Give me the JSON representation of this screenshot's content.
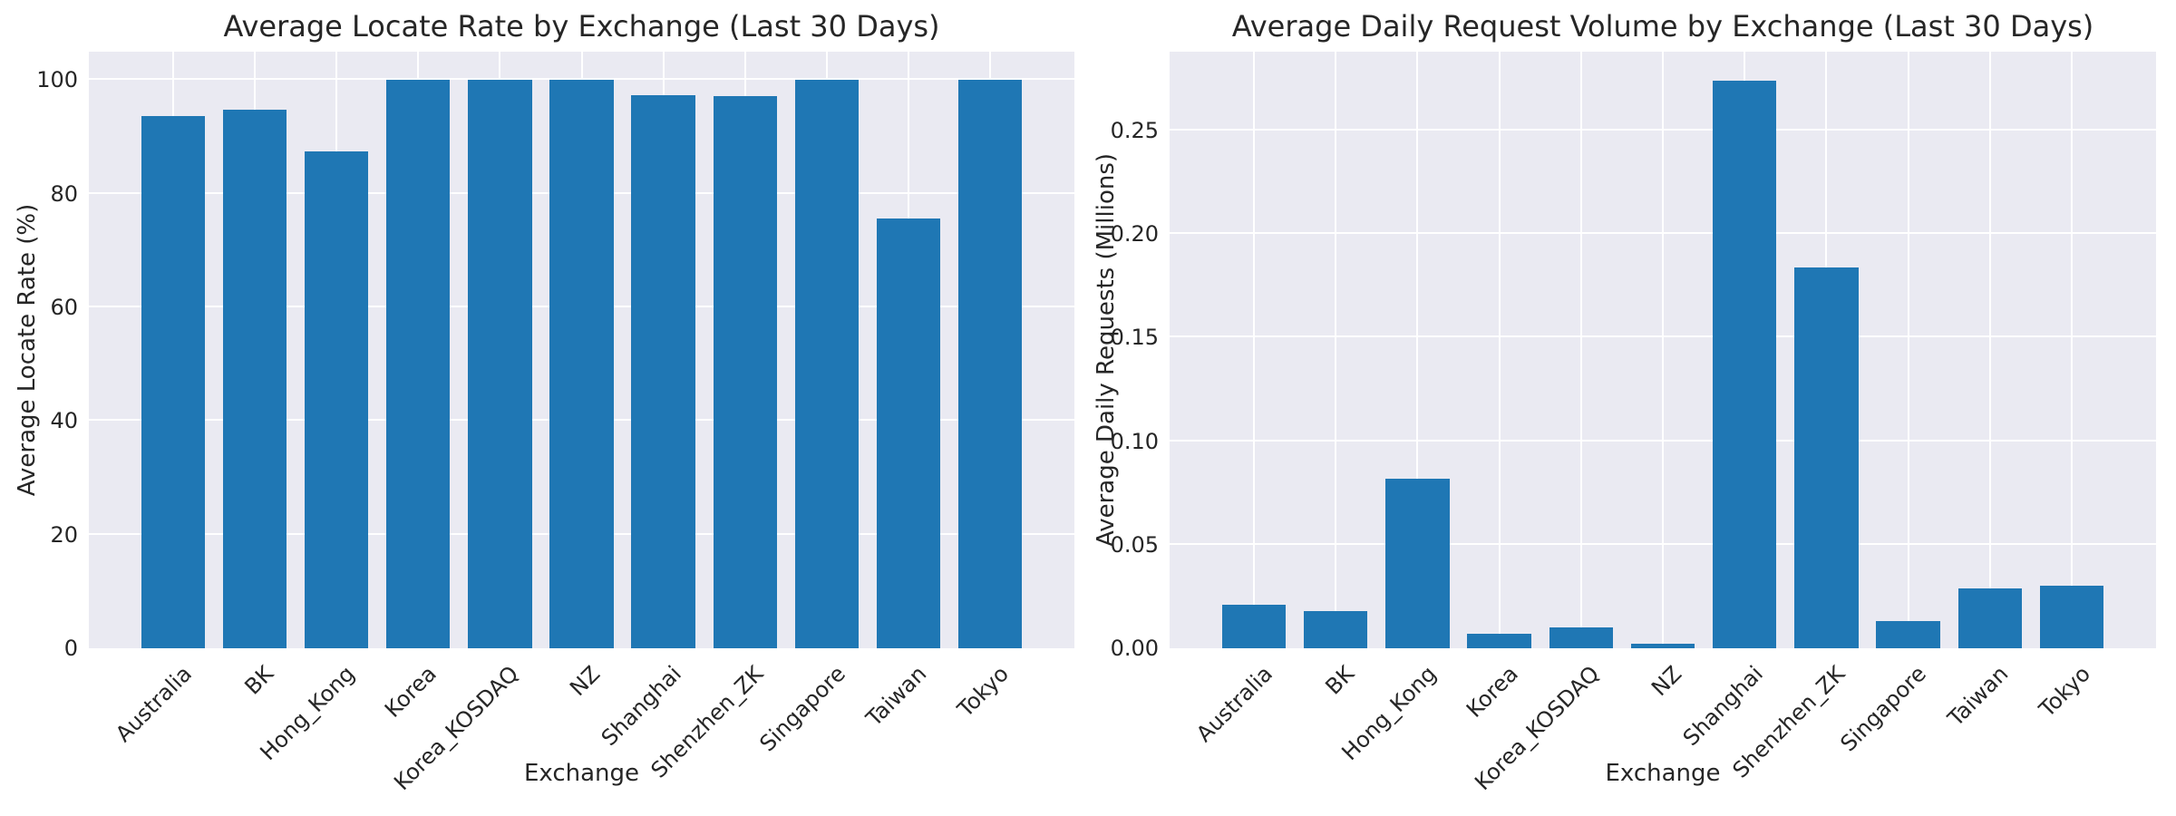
{
  "style": {
    "bar_color": "#1f77b4",
    "plot_background": "#eaeaf2",
    "grid_color": "#ffffff",
    "figure_background": "#ffffff",
    "text_color": "#262626"
  },
  "chart_data": [
    {
      "type": "bar",
      "title": "Average Locate Rate by Exchange (Last 30 Days)",
      "xlabel": "Exchange",
      "ylabel": "Average Locate Rate (%)",
      "categories": [
        "Australia",
        "BK",
        "Hong_Kong",
        "Korea",
        "Korea_KOSDAQ",
        "NZ",
        "Shanghai",
        "Shenzhen_ZK",
        "Singapore",
        "Taiwan",
        "Tokyo"
      ],
      "values": [
        93.6,
        94.8,
        87.4,
        100,
        100,
        100,
        97.4,
        97.2,
        100,
        75.7,
        100
      ],
      "ylim": [
        0,
        105
      ],
      "yticks": [
        0,
        20,
        40,
        60,
        80,
        100
      ],
      "ytick_labels": [
        "0",
        "20",
        "40",
        "60",
        "80",
        "100"
      ],
      "grid": true,
      "legend": "none",
      "tick_rotation": 45
    },
    {
      "type": "bar",
      "title": "Average Daily Request Volume by Exchange (Last 30 Days)",
      "xlabel": "Exchange",
      "ylabel": "Average Daily Requests (Millions)",
      "categories": [
        "Australia",
        "BK",
        "Hong_Kong",
        "Korea",
        "Korea_KOSDAQ",
        "NZ",
        "Shanghai",
        "Shenzhen_ZK",
        "Singapore",
        "Taiwan",
        "Tokyo"
      ],
      "values": [
        0.021,
        0.018,
        0.082,
        0.007,
        0.01,
        0.002,
        0.274,
        0.184,
        0.013,
        0.029,
        0.03
      ],
      "ylim": [
        0,
        0.288
      ],
      "yticks": [
        0,
        0.05,
        0.1,
        0.15,
        0.2,
        0.25
      ],
      "ytick_labels": [
        "0.00",
        "0.05",
        "0.10",
        "0.15",
        "0.20",
        "0.25"
      ],
      "grid": true,
      "legend": "none",
      "tick_rotation": 45
    }
  ]
}
